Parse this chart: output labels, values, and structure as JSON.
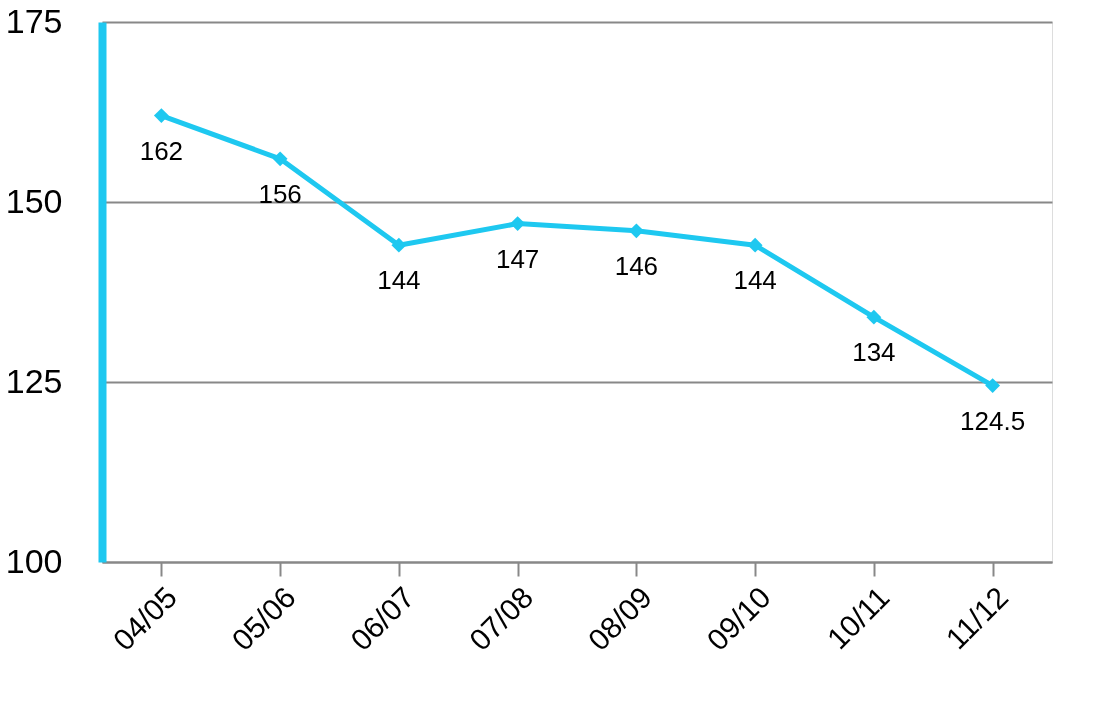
{
  "chart_data": {
    "type": "line",
    "categories": [
      "04/05",
      "05/06",
      "06/07",
      "07/08",
      "08/09",
      "09/10",
      "10/11",
      "11/12"
    ],
    "series": [
      {
        "color": "#1ec8f0",
        "values": [
          162,
          156,
          144,
          147,
          146,
          144,
          134,
          124.5
        ]
      }
    ],
    "ylim": [
      100,
      175
    ],
    "yticks": [
      100,
      125,
      150,
      175
    ],
    "grid": "y",
    "marker": "diamond",
    "line_style": "solid",
    "data_labels": true
  }
}
